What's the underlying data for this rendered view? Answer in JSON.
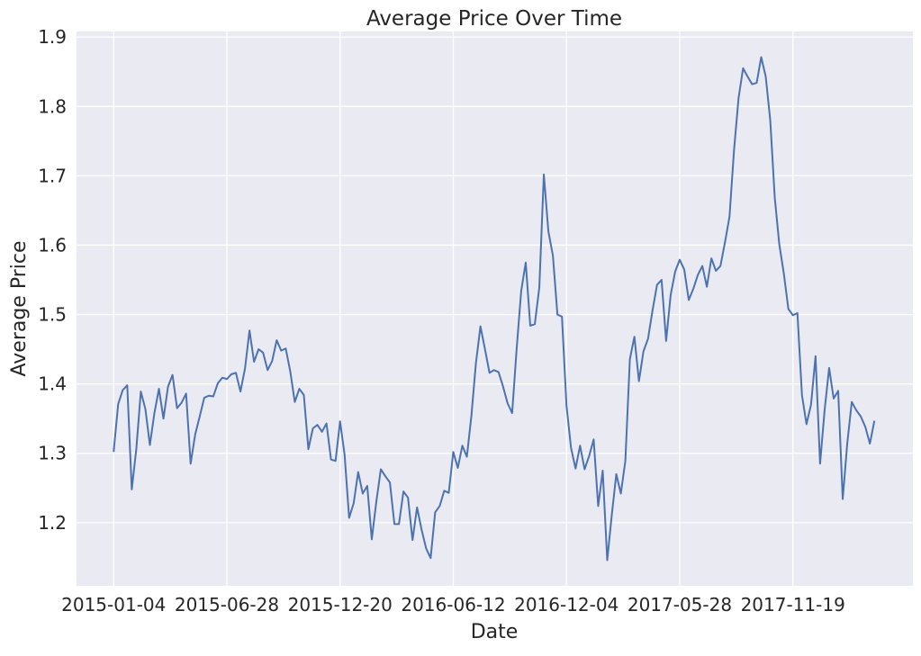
{
  "chart_data": {
    "type": "line",
    "title": "Average Price Over Time",
    "xlabel": "Date",
    "ylabel": "Average Price",
    "x_ticks": [
      "2015-01-04",
      "2015-06-28",
      "2015-12-20",
      "2016-06-12",
      "2016-12-04",
      "2017-05-28",
      "2017-11-19"
    ],
    "y_ticks": [
      "1.2",
      "1.3",
      "1.4",
      "1.5",
      "1.6",
      "1.7",
      "1.8",
      "1.9"
    ],
    "ylim": [
      1.109,
      1.908
    ],
    "xlim_weeks": [
      -8.2,
      176.5
    ],
    "grid": true,
    "x_start": "2015-01-04",
    "x_step": "1 week",
    "colors": {
      "background": "#eaeaf2",
      "grid": "#ffffff",
      "line": "#4c72b0"
    },
    "series": [
      {
        "name": "",
        "values": [
          1.302,
          1.371,
          1.391,
          1.398,
          1.248,
          1.306,
          1.389,
          1.364,
          1.312,
          1.358,
          1.393,
          1.35,
          1.396,
          1.413,
          1.365,
          1.373,
          1.386,
          1.285,
          1.327,
          1.353,
          1.38,
          1.383,
          1.382,
          1.401,
          1.409,
          1.407,
          1.414,
          1.416,
          1.389,
          1.422,
          1.477,
          1.432,
          1.45,
          1.445,
          1.42,
          1.433,
          1.463,
          1.448,
          1.451,
          1.418,
          1.374,
          1.393,
          1.384,
          1.306,
          1.336,
          1.341,
          1.331,
          1.343,
          1.291,
          1.289,
          1.346,
          1.298,
          1.207,
          1.228,
          1.273,
          1.242,
          1.253,
          1.176,
          1.23,
          1.277,
          1.267,
          1.258,
          1.198,
          1.198,
          1.245,
          1.236,
          1.175,
          1.222,
          1.19,
          1.163,
          1.149,
          1.215,
          1.224,
          1.246,
          1.243,
          1.302,
          1.279,
          1.311,
          1.295,
          1.354,
          1.43,
          1.483,
          1.45,
          1.416,
          1.42,
          1.417,
          1.396,
          1.372,
          1.358,
          1.451,
          1.534,
          1.575,
          1.484,
          1.486,
          1.539,
          1.702,
          1.62,
          1.585,
          1.5,
          1.497,
          1.369,
          1.308,
          1.278,
          1.311,
          1.277,
          1.296,
          1.32,
          1.224,
          1.275,
          1.146,
          1.211,
          1.27,
          1.242,
          1.289,
          1.436,
          1.468,
          1.404,
          1.447,
          1.465,
          1.506,
          1.543,
          1.55,
          1.462,
          1.528,
          1.562,
          1.579,
          1.565,
          1.521,
          1.537,
          1.557,
          1.57,
          1.54,
          1.581,
          1.563,
          1.57,
          1.604,
          1.641,
          1.737,
          1.812,
          1.855,
          1.843,
          1.832,
          1.834,
          1.871,
          1.843,
          1.78,
          1.668,
          1.601,
          1.559,
          1.508,
          1.499,
          1.502,
          1.384,
          1.342,
          1.37,
          1.44,
          1.285,
          1.362,
          1.423,
          1.379,
          1.39,
          1.234,
          1.314,
          1.374,
          1.362,
          1.353,
          1.338,
          1.314,
          1.347
        ]
      }
    ]
  }
}
